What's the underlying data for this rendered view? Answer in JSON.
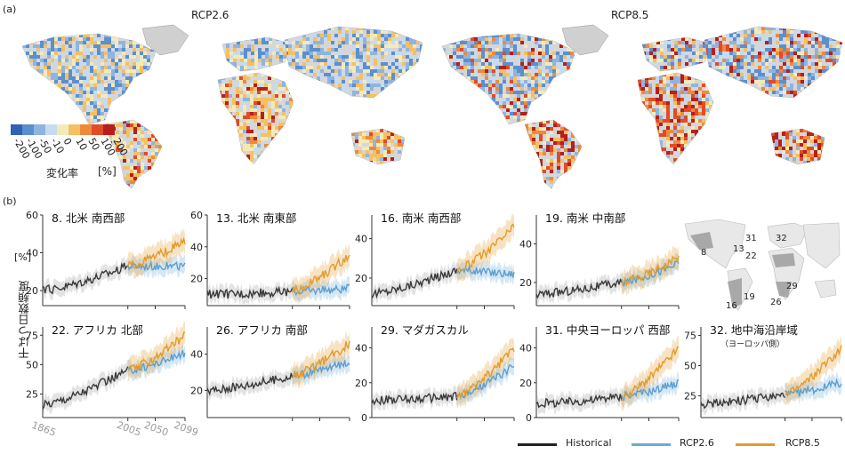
{
  "figure": {
    "panel_a_label": "(a)",
    "panel_b_label": "(b)"
  },
  "maps": {
    "left_title": "RCP2.6",
    "right_title": "RCP8.5",
    "colorbar": {
      "ticks": [
        "-200",
        "-100",
        "-50",
        "-10",
        "0",
        "10",
        "50",
        "100",
        "200"
      ],
      "colors": [
        "#2f63b4",
        "#5b8fd0",
        "#8fb4e1",
        "#c7dbf0",
        "#f3eaba",
        "#f5c060",
        "#ee8a3b",
        "#e24b26",
        "#b81e1a"
      ],
      "label": "変化率",
      "unit": "[%]"
    },
    "colors": {
      "ocean": "#ffffff",
      "land_neutral": "#d6d6d6",
      "no_data": "#cfcfcf",
      "greenland": "#d0d0d0"
    }
  },
  "legend": {
    "items": [
      {
        "label": "Historical",
        "color": "#222222"
      },
      {
        "label": "RCP2.6",
        "color": "#6aaad6"
      },
      {
        "label": "RCP8.5",
        "color": "#e39b2c"
      }
    ]
  },
  "axes": {
    "ylabel": "干ばつ日数頻度",
    "yunit": "[%]",
    "x_tick_labels": [
      "1865",
      "2005",
      "2050",
      "2099"
    ]
  },
  "inset_map": {
    "region_numbers": [
      "8",
      "13",
      "16",
      "19",
      "22",
      "26",
      "29",
      "31",
      "32"
    ]
  },
  "chart_data": [
    {
      "type": "line",
      "title": "8. 北米 南西部",
      "x_start": 1865,
      "x_end": 2099,
      "ylim": [
        12,
        60
      ],
      "yticks": [
        20,
        40,
        60
      ],
      "hist": [
        20,
        33
      ],
      "r26": [
        33,
        33
      ],
      "r85": [
        33,
        46
      ]
    },
    {
      "type": "line",
      "title": "13. 北米 南東部",
      "x_start": 1865,
      "x_end": 2099,
      "ylim": [
        3,
        60
      ],
      "yticks": [
        20,
        40,
        60
      ],
      "hist": [
        10,
        12
      ],
      "r26": [
        12,
        14
      ],
      "r85": [
        12,
        35
      ]
    },
    {
      "type": "line",
      "title": "16. 南米 南西部",
      "x_start": 1865,
      "x_end": 2099,
      "ylim": [
        6,
        52
      ],
      "yticks": [
        20,
        40
      ],
      "hist": [
        12,
        24
      ],
      "r26": [
        24,
        22
      ],
      "r85": [
        24,
        46
      ]
    },
    {
      "type": "line",
      "title": "19. 南米 中南部",
      "x_start": 1865,
      "x_end": 2099,
      "ylim": [
        8,
        55
      ],
      "yticks": [
        20,
        40
      ],
      "hist": [
        14,
        20
      ],
      "r26": [
        20,
        30
      ],
      "r85": [
        20,
        33
      ]
    },
    {
      "type": "line",
      "title": "22. アフリカ 北部",
      "x_start": 1865,
      "x_end": 2099,
      "ylim": [
        5,
        82
      ],
      "yticks": [
        25,
        50,
        75
      ],
      "hist": [
        16,
        45
      ],
      "r26": [
        45,
        60
      ],
      "r85": [
        45,
        75
      ]
    },
    {
      "type": "line",
      "title": "26. アフリカ 南部",
      "x_start": 1865,
      "x_end": 2099,
      "ylim": [
        5,
        55
      ],
      "yticks": [
        20,
        40
      ],
      "hist": [
        20,
        28
      ],
      "r26": [
        28,
        36
      ],
      "r85": [
        28,
        46
      ]
    },
    {
      "type": "line",
      "title": "29. マダガスカル",
      "x_start": 1865,
      "x_end": 2099,
      "ylim": [
        0,
        52
      ],
      "yticks": [
        0,
        20,
        40
      ],
      "hist": [
        10,
        12
      ],
      "r26": [
        12,
        30
      ],
      "r85": [
        12,
        40
      ]
    },
    {
      "type": "line",
      "title": "31. 中央ヨーロッパ 西部",
      "x_start": 1865,
      "x_end": 2099,
      "ylim": [
        0,
        52
      ],
      "yticks": [
        0,
        20,
        40
      ],
      "hist": [
        8,
        12
      ],
      "r26": [
        12,
        20
      ],
      "r85": [
        12,
        40
      ]
    },
    {
      "type": "line",
      "title": "32. 地中海沿岸域",
      "subtitle": "（ヨーロッパ側）",
      "x_start": 1865,
      "x_end": 2099,
      "ylim": [
        7,
        82
      ],
      "yticks": [
        25,
        50,
        75
      ],
      "hist": [
        18,
        26
      ],
      "r26": [
        26,
        36
      ],
      "r85": [
        26,
        65
      ]
    }
  ]
}
